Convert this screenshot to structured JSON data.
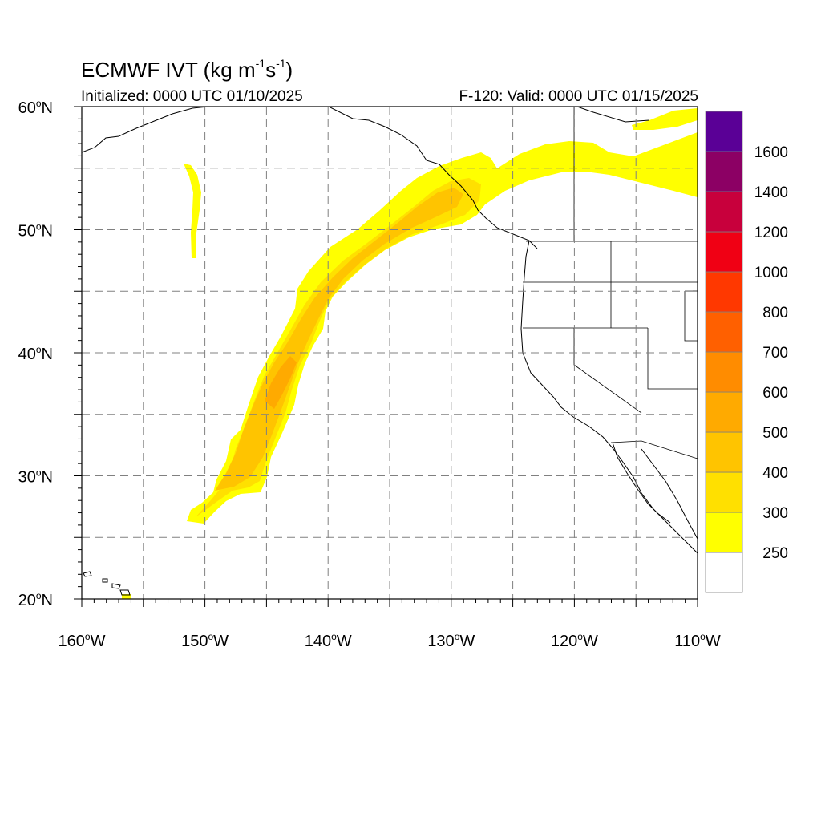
{
  "header": {
    "title_main": "ECMWF IVT (kg m",
    "title_exp1": "-1",
    "title_mid": "s",
    "title_exp2": "-1",
    "title_end": ")",
    "initialized": "Initialized: 0000 UTC 01/10/2025",
    "valid": "F-120: Valid: 0000 UTC 01/15/2025"
  },
  "axes": {
    "lat_labels": [
      {
        "deg": "60",
        "lat": 60
      },
      {
        "deg": "50",
        "lat": 50
      },
      {
        "deg": "40",
        "lat": 40
      },
      {
        "deg": "30",
        "lat": 30
      },
      {
        "deg": "20",
        "lat": 20
      }
    ],
    "lon_labels": [
      {
        "deg": "160",
        "lon": -160
      },
      {
        "deg": "150",
        "lon": -150
      },
      {
        "deg": "140",
        "lon": -140
      },
      {
        "deg": "130",
        "lon": -130
      },
      {
        "deg": "120",
        "lon": -120
      },
      {
        "deg": "110",
        "lon": -110
      }
    ],
    "lat_suffix": "N",
    "lon_suffix": "W",
    "lat_range": [
      20,
      60
    ],
    "lon_range": [
      -160,
      -110
    ],
    "grid": true
  },
  "colorbar": {
    "levels": [
      {
        "label": "",
        "color": "#ffffff"
      },
      {
        "label": "250",
        "color": "#ffff00"
      },
      {
        "label": "300",
        "color": "#ffe000"
      },
      {
        "label": "400",
        "color": "#ffc400"
      },
      {
        "label": "500",
        "color": "#ffaa00"
      },
      {
        "label": "600",
        "color": "#ff8c00"
      },
      {
        "label": "700",
        "color": "#ff6000"
      },
      {
        "label": "800",
        "color": "#ff3800"
      },
      {
        "label": "1000",
        "color": "#f00014"
      },
      {
        "label": "1200",
        "color": "#c8003c"
      },
      {
        "label": "1400",
        "color": "#8c0064"
      },
      {
        "label": "1600",
        "color": "#5a0096"
      }
    ]
  },
  "colors": {
    "ivt_250": "#ffff00",
    "ivt_300": "#ffe000",
    "ivt_400": "#ffc400",
    "ivt_500": "#ffaa00",
    "coast": "#000000",
    "grid": "#808080"
  }
}
